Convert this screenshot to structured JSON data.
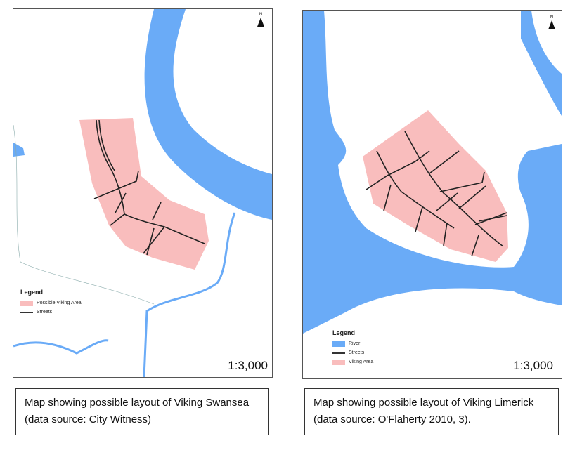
{
  "colors": {
    "river": "#6aabf7",
    "viking_area": "#f9bdbd",
    "streets": "#222222"
  },
  "left_map": {
    "north_label": "N",
    "legend": {
      "title": "Legend",
      "items": [
        {
          "label": "Possible Viking Area",
          "symbol": "pink-fill"
        },
        {
          "label": "Streets",
          "symbol": "line"
        }
      ]
    },
    "scale": "1:3,000",
    "caption": "Map showing possible layout of Viking Swansea (data source: City Witness)"
  },
  "right_map": {
    "north_label": "N",
    "legend": {
      "title": "Legend",
      "items": [
        {
          "label": "River",
          "symbol": "blue-fill"
        },
        {
          "label": "Streets",
          "symbol": "line"
        },
        {
          "label": "Viking Area",
          "symbol": "pink-fill"
        }
      ]
    },
    "scale": "1:3,000",
    "caption": "Map showing possible layout of Viking Limerick (data source: O'Flaherty 2010, 3)."
  }
}
